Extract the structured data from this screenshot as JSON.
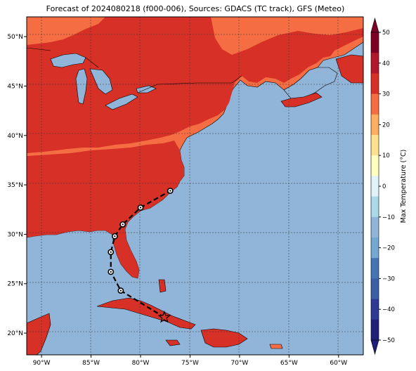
{
  "title": "Forecast of 2024080218 (f000-006), Sources: GDACS (TC track), GFS (Meteo)",
  "map": {
    "lon_range": [
      -91.5,
      -57.5
    ],
    "lat_range": [
      17.8,
      52.0
    ],
    "lon_ticks": [
      {
        "value": -90,
        "label": "90°W"
      },
      {
        "value": -85,
        "label": "85°W"
      },
      {
        "value": -80,
        "label": "80°W"
      },
      {
        "value": -75,
        "label": "75°W"
      },
      {
        "value": -70,
        "label": "70°W"
      },
      {
        "value": -65,
        "label": "65°W"
      },
      {
        "value": -60,
        "label": "60°W"
      }
    ],
    "lat_ticks": [
      {
        "value": 20,
        "label": "20°N"
      },
      {
        "value": 25,
        "label": "25°N"
      },
      {
        "value": 30,
        "label": "30°N"
      },
      {
        "value": 35,
        "label": "35°N"
      },
      {
        "value": 40,
        "label": "40°N"
      },
      {
        "value": 45,
        "label": "45°N"
      },
      {
        "value": 50,
        "label": "50°N"
      }
    ],
    "gridlines": true,
    "colors": {
      "ocean": "#91b5d9",
      "land_30_40": "#d73027",
      "land_20_30": "#f46d43",
      "land_10_20": "#fdae61",
      "coast": "#000000"
    }
  },
  "track": {
    "points": [
      {
        "lon": -77.6,
        "lat": 21.6,
        "symbol": "star-icon"
      },
      {
        "lon": -82.0,
        "lat": 24.3
      },
      {
        "lon": -83.0,
        "lat": 26.2
      },
      {
        "lon": -83.0,
        "lat": 28.2
      },
      {
        "lon": -82.6,
        "lat": 29.8
      },
      {
        "lon": -81.8,
        "lat": 31.0
      },
      {
        "lon": -80.0,
        "lat": 32.7
      },
      {
        "lon": -77.0,
        "lat": 34.4
      }
    ]
  },
  "colorbar": {
    "label": "Max Temperature (°C)",
    "ticks": [
      "50",
      "40",
      "30",
      "20",
      "10",
      "0",
      "−10",
      "−20",
      "−30",
      "−40",
      "−50"
    ],
    "colors": [
      "#7f0026",
      "#b2182b",
      "#d73027",
      "#f46d43",
      "#fdae61",
      "#fee090",
      "#ffffbf",
      "#e0f3f8",
      "#abd9e9",
      "#91b5d9",
      "#74a9cf",
      "#4575b4",
      "#3a5fa6",
      "#2c3a93",
      "#1f1f7a"
    ],
    "extend": "both"
  }
}
